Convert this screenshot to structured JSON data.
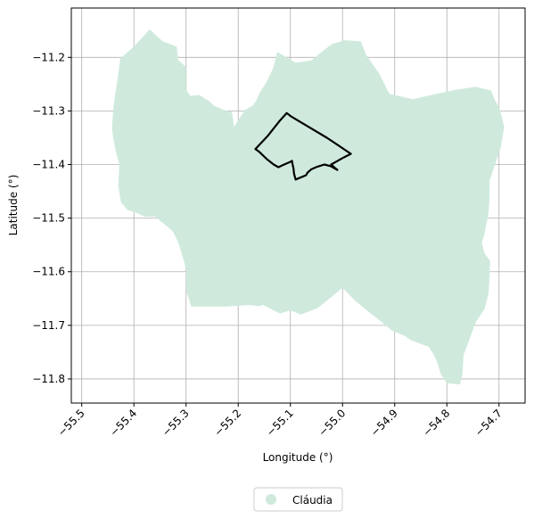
{
  "chart_data": {
    "type": "map",
    "xlabel": "Longitude (°)",
    "ylabel": "Latitude (°)",
    "xlim": [
      -55.52,
      -54.65
    ],
    "ylim": [
      -11.845,
      -11.108
    ],
    "xticks": [
      -55.5,
      -55.4,
      -55.3,
      -55.2,
      -55.1,
      -55.0,
      -54.9,
      -54.8,
      -54.7
    ],
    "xtick_labels": [
      "−55.5",
      "−55.4",
      "−55.3",
      "−55.2",
      "−55.1",
      "−55.0",
      "−54.9",
      "−54.8",
      "−54.7"
    ],
    "yticks": [
      -11.2,
      -11.3,
      -11.4,
      -11.5,
      -11.6,
      -11.7,
      -11.8
    ],
    "ytick_labels": [
      "−11.2",
      "−11.3",
      "−11.4",
      "−11.5",
      "−11.6",
      "−11.7",
      "−11.8"
    ],
    "grid": true,
    "legend_position": "bottom-center",
    "series": [
      {
        "name": "Cláudia",
        "kind": "polygon",
        "color": "#cfeadd",
        "coords": [
          [
            -55.426,
            -11.202
          ],
          [
            -55.4,
            -11.18
          ],
          [
            -55.37,
            -11.148
          ],
          [
            -55.345,
            -11.17
          ],
          [
            -55.318,
            -11.18
          ],
          [
            -55.315,
            -11.205
          ],
          [
            -55.3,
            -11.218
          ],
          [
            -55.3,
            -11.26
          ],
          [
            -55.292,
            -11.272
          ],
          [
            -55.275,
            -11.27
          ],
          [
            -55.255,
            -11.282
          ],
          [
            -55.247,
            -11.29
          ],
          [
            -55.228,
            -11.298
          ],
          [
            -55.212,
            -11.302
          ],
          [
            -55.208,
            -11.33
          ],
          [
            -55.187,
            -11.298
          ],
          [
            -55.172,
            -11.29
          ],
          [
            -55.165,
            -11.28
          ],
          [
            -55.158,
            -11.265
          ],
          [
            -55.145,
            -11.245
          ],
          [
            -55.133,
            -11.22
          ],
          [
            -55.125,
            -11.19
          ],
          [
            -55.09,
            -11.21
          ],
          [
            -55.06,
            -11.206
          ],
          [
            -55.04,
            -11.19
          ],
          [
            -55.02,
            -11.175
          ],
          [
            -54.995,
            -11.168
          ],
          [
            -54.965,
            -11.17
          ],
          [
            -54.955,
            -11.195
          ],
          [
            -54.93,
            -11.23
          ],
          [
            -54.91,
            -11.268
          ],
          [
            -54.865,
            -11.278
          ],
          [
            -54.82,
            -11.268
          ],
          [
            -54.78,
            -11.26
          ],
          [
            -54.745,
            -11.255
          ],
          [
            -54.715,
            -11.262
          ],
          [
            -54.71,
            -11.275
          ],
          [
            -54.698,
            -11.298
          ],
          [
            -54.69,
            -11.33
          ],
          [
            -54.697,
            -11.37
          ],
          [
            -54.707,
            -11.398
          ],
          [
            -54.718,
            -11.43
          ],
          [
            -54.718,
            -11.46
          ],
          [
            -54.72,
            -11.49
          ],
          [
            -54.728,
            -11.53
          ],
          [
            -54.733,
            -11.545
          ],
          [
            -54.728,
            -11.565
          ],
          [
            -54.717,
            -11.58
          ],
          [
            -54.718,
            -11.61
          ],
          [
            -54.72,
            -11.64
          ],
          [
            -54.728,
            -11.67
          ],
          [
            -54.745,
            -11.695
          ],
          [
            -54.758,
            -11.73
          ],
          [
            -54.768,
            -11.755
          ],
          [
            -54.77,
            -11.79
          ],
          [
            -54.775,
            -11.81
          ],
          [
            -54.8,
            -11.808
          ],
          [
            -54.812,
            -11.79
          ],
          [
            -54.818,
            -11.77
          ],
          [
            -54.825,
            -11.755
          ],
          [
            -54.835,
            -11.74
          ],
          [
            -54.852,
            -11.734
          ],
          [
            -54.87,
            -11.727
          ],
          [
            -54.88,
            -11.72
          ],
          [
            -54.905,
            -11.71
          ],
          [
            -54.93,
            -11.69
          ],
          [
            -54.95,
            -11.675
          ],
          [
            -54.975,
            -11.655
          ],
          [
            -55.0,
            -11.63
          ],
          [
            -55.025,
            -11.65
          ],
          [
            -55.048,
            -11.668
          ],
          [
            -55.08,
            -11.68
          ],
          [
            -55.1,
            -11.672
          ],
          [
            -55.12,
            -11.678
          ],
          [
            -55.14,
            -11.668
          ],
          [
            -55.152,
            -11.662
          ],
          [
            -55.16,
            -11.664
          ],
          [
            -55.18,
            -11.662
          ],
          [
            -55.222,
            -11.665
          ],
          [
            -55.29,
            -11.665
          ],
          [
            -55.3,
            -11.635
          ],
          [
            -55.3,
            -11.595
          ],
          [
            -55.307,
            -11.57
          ],
          [
            -55.315,
            -11.545
          ],
          [
            -55.325,
            -11.525
          ],
          [
            -55.337,
            -11.515
          ],
          [
            -55.36,
            -11.497
          ],
          [
            -55.378,
            -11.498
          ],
          [
            -55.395,
            -11.49
          ],
          [
            -55.412,
            -11.485
          ],
          [
            -55.425,
            -11.47
          ],
          [
            -55.43,
            -11.44
          ],
          [
            -55.428,
            -11.4
          ],
          [
            -55.436,
            -11.37
          ],
          [
            -55.442,
            -11.335
          ],
          [
            -55.44,
            -11.302
          ],
          [
            -55.437,
            -11.275
          ],
          [
            -55.432,
            -11.245
          ],
          [
            -55.426,
            -11.202
          ]
        ]
      },
      {
        "name": "",
        "kind": "line",
        "color": "#000000",
        "coords": [
          [
            -55.107,
            -11.304
          ],
          [
            -55.099,
            -11.31
          ],
          [
            -55.07,
            -11.327
          ],
          [
            -55.03,
            -11.35
          ],
          [
            -54.984,
            -11.38
          ],
          [
            -55.0,
            -11.388
          ],
          [
            -55.011,
            -11.394
          ],
          [
            -55.022,
            -11.4
          ],
          [
            -55.015,
            -11.406
          ],
          [
            -55.01,
            -11.41
          ],
          [
            -55.023,
            -11.403
          ],
          [
            -55.035,
            -11.4
          ],
          [
            -55.048,
            -11.404
          ],
          [
            -55.06,
            -11.409
          ],
          [
            -55.067,
            -11.415
          ],
          [
            -55.07,
            -11.42
          ],
          [
            -55.09,
            -11.428
          ],
          [
            -55.093,
            -11.417
          ],
          [
            -55.094,
            -11.407
          ],
          [
            -55.096,
            -11.399
          ],
          [
            -55.097,
            -11.393
          ],
          [
            -55.1,
            -11.395
          ],
          [
            -55.112,
            -11.4
          ],
          [
            -55.123,
            -11.405
          ],
          [
            -55.132,
            -11.4
          ],
          [
            -55.145,
            -11.39
          ],
          [
            -55.16,
            -11.376
          ],
          [
            -55.167,
            -11.371
          ],
          [
            -55.143,
            -11.346
          ],
          [
            -55.12,
            -11.318
          ],
          [
            -55.107,
            -11.304
          ]
        ]
      }
    ]
  }
}
